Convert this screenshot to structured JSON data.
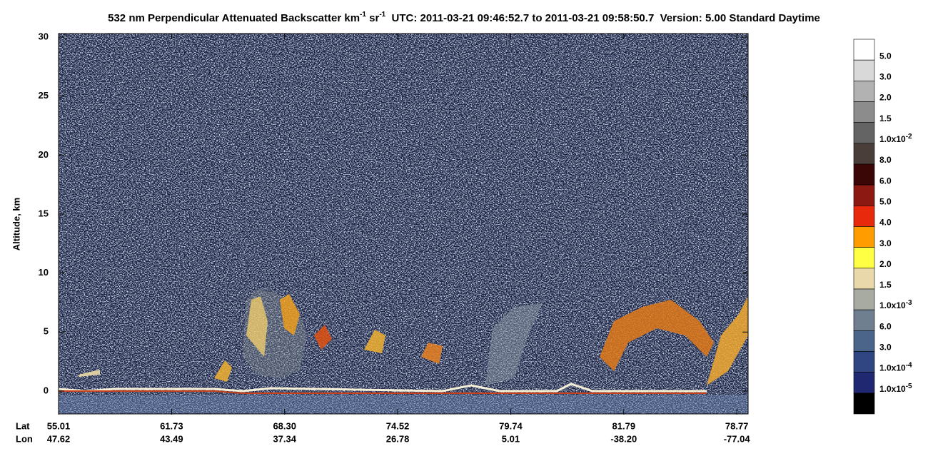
{
  "chart_data": {
    "type": "heatmap",
    "title": [
      "532 nm Perpendicular Attenuated Backscatter km",
      "-1",
      " sr",
      "-1",
      "  UTC: 2011-03-21 09:46:52.7 to 2011-03-21 09:58:50.7  Version: 5.00 Standard Daytime"
    ],
    "ylabel": "Altitude, km",
    "ylim": [
      -2,
      30
    ],
    "yticks": [
      0,
      5,
      10,
      15,
      20,
      25,
      30
    ],
    "x_rows": [
      {
        "name": "Lat",
        "labels": [
          "55.01",
          "61.73",
          "68.30",
          "74.52",
          "79.74",
          "81.79",
          "78.77"
        ]
      },
      {
        "name": "Lon",
        "labels": [
          "47.62",
          "43.49",
          "37.34",
          "26.78",
          "5.01",
          "-38.20",
          "-77.04"
        ]
      }
    ],
    "colorbar": {
      "colors": [
        "#ffffff",
        "#d9d9d9",
        "#b2b2b2",
        "#8c8c8c",
        "#646464",
        "#4a3e3a",
        "#3a0606",
        "#8c1a12",
        "#e8290b",
        "#ff9c00",
        "#ffff44",
        "#e9d9aa",
        "#a8aba2",
        "#6f7f8f",
        "#4b6489",
        "#2f4682",
        "#212872",
        "#000000"
      ],
      "labels": [
        "5.0",
        "3.0",
        "2.0",
        "1.5",
        {
          "text": "1.0x10",
          "exponent": "-2"
        },
        "8.0",
        "6.0",
        "5.0",
        "4.0",
        "3.0",
        "2.0",
        "1.5",
        {
          "text": "1.0x10",
          "exponent": "-3"
        },
        "6.0",
        "3.0",
        {
          "text": "1.0x10",
          "exponent": "-4"
        },
        {
          "text": "1.0x10",
          "exponent": "-5"
        }
      ]
    }
  }
}
